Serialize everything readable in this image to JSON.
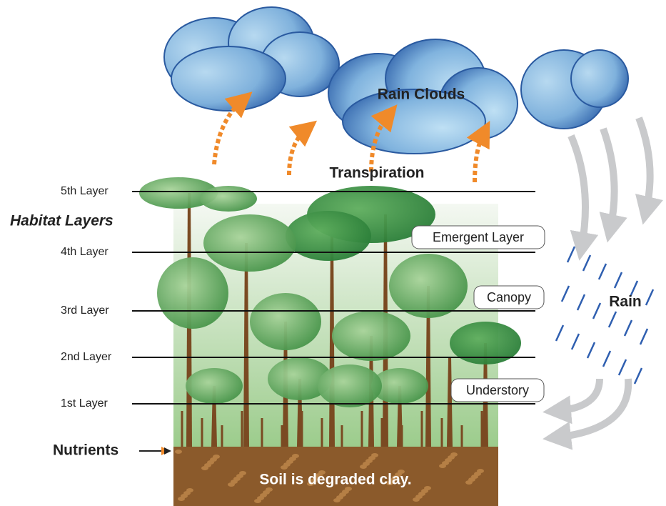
{
  "clouds": {
    "label": "Rain Clouds"
  },
  "transpiration": "Transpiration",
  "habitat_layers": {
    "title": "Habitat Layers",
    "layers": [
      "5th Layer",
      "4th Layer",
      "3rd Layer",
      "2nd Layer",
      "1st Layer"
    ]
  },
  "zones": [
    "Emergent Layer",
    "Canopy",
    "Understory"
  ],
  "rain": "Rain",
  "nutrients": "Nutrients",
  "soil": "Soil is degraded clay."
}
